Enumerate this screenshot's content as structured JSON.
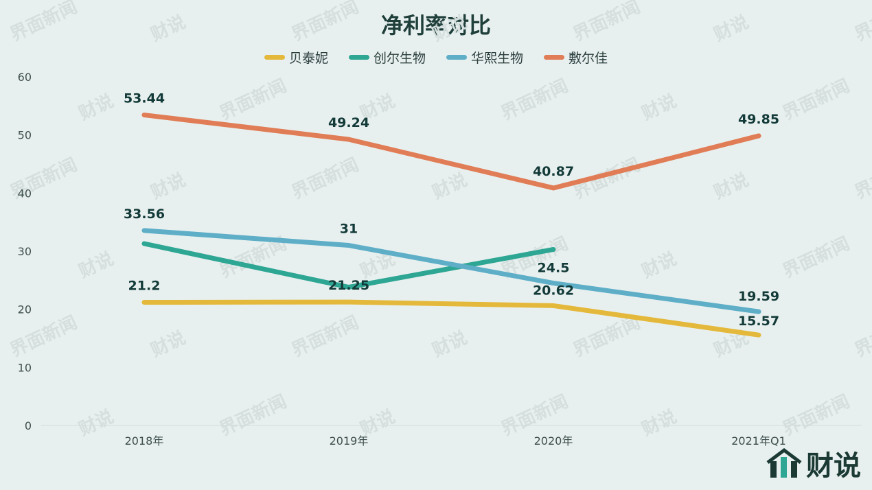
{
  "chart_data": {
    "type": "line",
    "title": "净利率对比",
    "categories": [
      "2018年",
      "2019年",
      "2020年",
      "2021年Q1"
    ],
    "ylim": [
      0,
      60
    ],
    "yticks": [
      0,
      10,
      20,
      30,
      40,
      50,
      60
    ],
    "grid": false,
    "legend_position": "top",
    "series": [
      {
        "name": "贝泰妮",
        "color": "#e4b83a",
        "values": [
          21.2,
          21.25,
          20.62,
          15.57
        ],
        "labels": [
          "21.2",
          "21.25",
          "20.62",
          "15.57"
        ]
      },
      {
        "name": "创尔生物",
        "color": "#2ea694",
        "values": [
          31.3,
          23.8,
          30.3,
          null
        ],
        "labels": null
      },
      {
        "name": "华熙生物",
        "color": "#5eaec7",
        "values": [
          33.56,
          31,
          24.5,
          19.59
        ],
        "labels": [
          "33.56",
          "31",
          "24.5",
          "19.59"
        ]
      },
      {
        "name": "敷尔佳",
        "color": "#e07d56",
        "values": [
          53.44,
          49.24,
          40.87,
          49.85
        ],
        "labels": [
          "53.44",
          "49.24",
          "40.87",
          "49.85"
        ]
      }
    ]
  },
  "watermark": {
    "text1": "界面新闻",
    "text2": "财说"
  },
  "brand": {
    "name": "财说",
    "icon": "bar-chart-logo-icon"
  }
}
